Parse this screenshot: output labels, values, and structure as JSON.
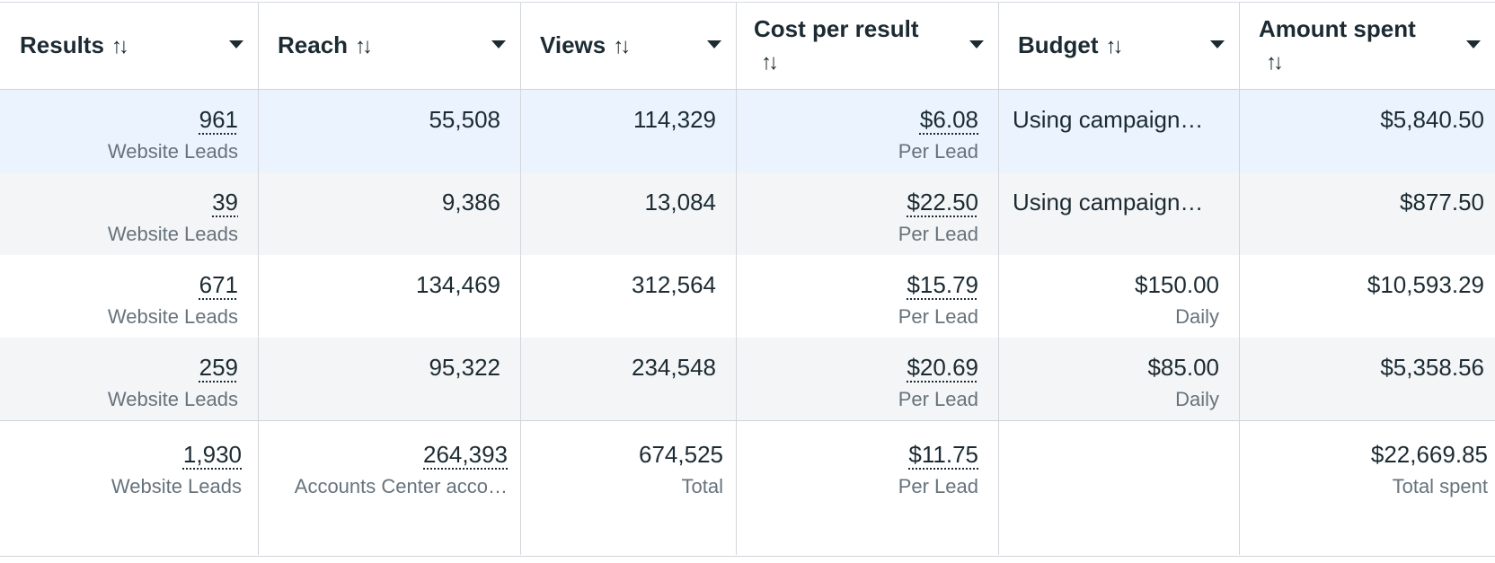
{
  "columns": [
    {
      "label": "Results"
    },
    {
      "label": "Reach"
    },
    {
      "label": "Views"
    },
    {
      "label": "Cost per result"
    },
    {
      "label": "Budget"
    },
    {
      "label": "Amount spent"
    }
  ],
  "sort_icon": "↑↓",
  "rows": [
    {
      "results": "961",
      "results_sub": "Website Leads",
      "reach": "55,508",
      "views": "114,329",
      "cost": "$6.08",
      "cost_sub": "Per Lead",
      "budget": "Using campaign…",
      "budget_sub": "",
      "spent": "$5,840.50"
    },
    {
      "results": "39",
      "results_sub": "Website Leads",
      "reach": "9,386",
      "views": "13,084",
      "cost": "$22.50",
      "cost_sub": "Per Lead",
      "budget": "Using campaign…",
      "budget_sub": "",
      "spent": "$877.50"
    },
    {
      "results": "671",
      "results_sub": "Website Leads",
      "reach": "134,469",
      "views": "312,564",
      "cost": "$15.79",
      "cost_sub": "Per Lead",
      "budget": "$150.00",
      "budget_sub": "Daily",
      "spent": "$10,593.29"
    },
    {
      "results": "259",
      "results_sub": "Website Leads",
      "reach": "95,322",
      "views": "234,548",
      "cost": "$20.69",
      "cost_sub": "Per Lead",
      "budget": "$85.00",
      "budget_sub": "Daily",
      "spent": "$5,358.56"
    }
  ],
  "totals": {
    "results": "1,930",
    "results_sub": "Website Leads",
    "reach": "264,393",
    "reach_sub": "Accounts Center acco…",
    "views": "674,525",
    "views_sub": "Total",
    "cost": "$11.75",
    "cost_sub": "Per Lead",
    "spent": "$22,669.85",
    "spent_sub": "Total spent"
  }
}
